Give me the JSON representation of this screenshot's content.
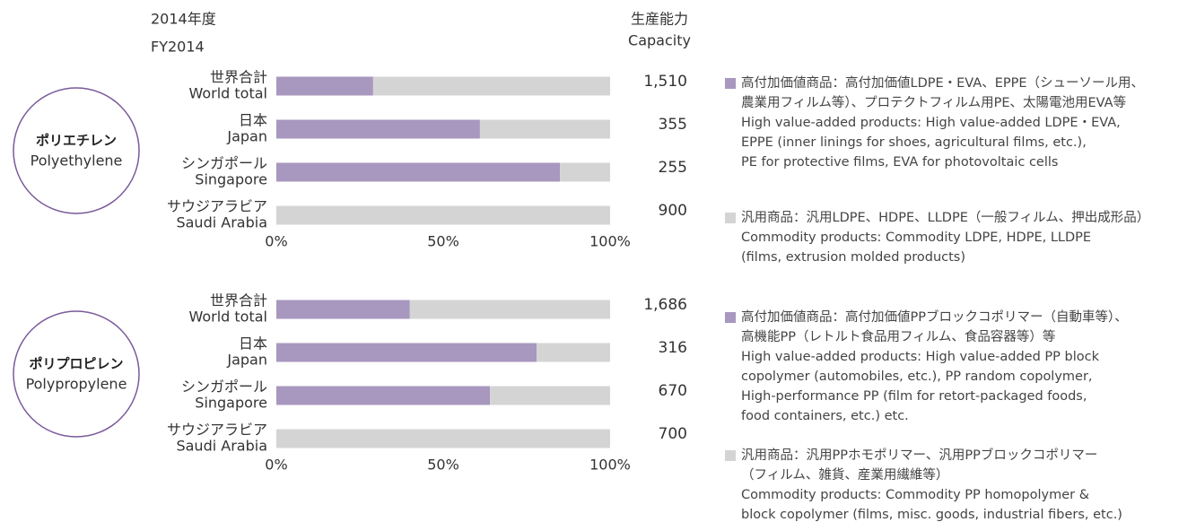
{
  "header": {
    "year_jp": "2014年度",
    "year_en": "FY2014",
    "capacity_jp": "生産能力",
    "capacity_en": "Capacity"
  },
  "chart_data": [
    {
      "type": "bar",
      "orientation": "horizontal",
      "stacked": true,
      "product": "ポリエチレン",
      "product_en": "Polyethylene",
      "categories": [
        "世界合計",
        "日本",
        "シンガポール",
        "サウジアラビア"
      ],
      "categories_en": [
        "World total",
        "Japan",
        "Singapore",
        "Saudi Arabia"
      ],
      "series": [
        {
          "color": "#a897be",
          "values": [
            29,
            61,
            85,
            0
          ],
          "legend_lines": [
            "高付加価値商品：高付加価値LDPE・EVA、EPPE（シューソール用、",
            "農業用フィルム等）、プロテクトフィルム用PE、太陽電池用EVA等",
            "High value-added products: High value-added LDPE・EVA,",
            "EPPE (inner linings for shoes, agricultural films, etc.),",
            "PE for protective films, EVA for photovoltaic cells"
          ]
        },
        {
          "color": "#d4d4d4",
          "values": [
            71,
            39,
            15,
            100
          ],
          "legend_lines": [
            "汎用商品：汎用LDPE、HDPE、LLDPE（一般フィルム、押出成形品）",
            "Commodity products: Commodity LDPE, HDPE, LLDPE",
            "(films, extrusion molded products)"
          ]
        }
      ],
      "capacity": [
        "1,510",
        "355",
        "255",
        "900"
      ],
      "xlim": [
        0,
        100
      ],
      "xticks": [
        {
          "value": 0,
          "label": "0%"
        },
        {
          "value": 50,
          "label": "50%"
        },
        {
          "value": 100,
          "label": "100%"
        }
      ]
    },
    {
      "type": "bar",
      "orientation": "horizontal",
      "stacked": true,
      "product": "ポリプロピレン",
      "product_en": "Polypropylene",
      "categories": [
        "世界合計",
        "日本",
        "シンガポール",
        "サウジアラビア"
      ],
      "categories_en": [
        "World total",
        "Japan",
        "Singapore",
        "Saudi Arabia"
      ],
      "series": [
        {
          "color": "#a897be",
          "values": [
            40,
            78,
            64,
            0
          ],
          "legend_lines": [
            "高付加価値商品：高付加価値PPブロックコポリマー（自動車等）、",
            "高機能PP（レトルト食品用フィルム、食品容器等）等",
            "High value-added products: High value-added PP block",
            "copolymer (automobiles, etc.), PP random copolymer,",
            "High-performance PP (film for retort-packaged foods,",
            "food containers, etc.) etc."
          ]
        },
        {
          "color": "#d4d4d4",
          "values": [
            60,
            22,
            36,
            100
          ],
          "legend_lines": [
            "汎用商品：汎用PPホモポリマー、汎用PPブロックコポリマー",
            "（フィルム、雑貨、産業用繊維等）",
            "Commodity products: Commodity PP homopolymer &",
            "block copolymer (films, misc. goods, industrial fibers, etc.)"
          ]
        }
      ],
      "capacity": [
        "1,686",
        "316",
        "670",
        "700"
      ],
      "xlim": [
        0,
        100
      ],
      "xticks": [
        {
          "value": 0,
          "label": "0%"
        },
        {
          "value": 50,
          "label": "50%"
        },
        {
          "value": 100,
          "label": "100%"
        }
      ]
    }
  ]
}
